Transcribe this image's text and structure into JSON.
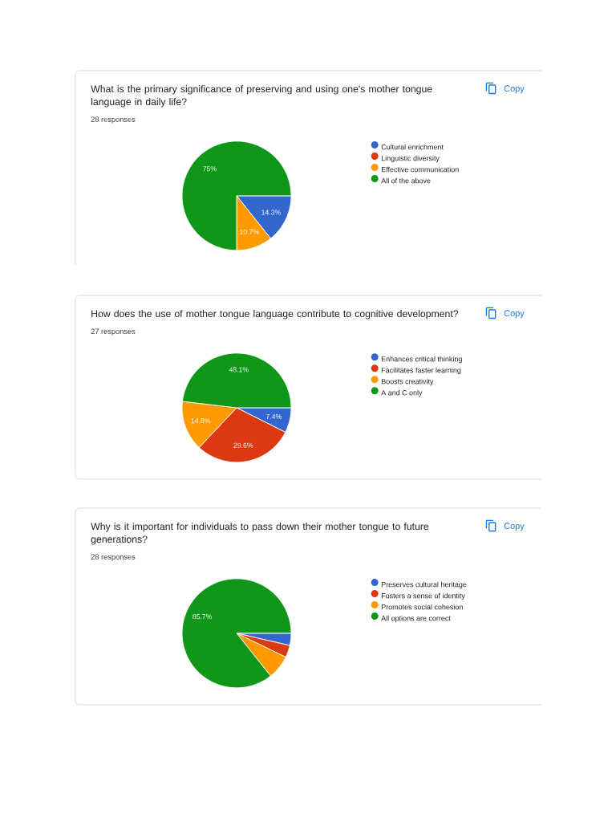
{
  "chart_data": [
    {
      "type": "pie",
      "title": "What is the primary significance of preserving and using one's mother tongue language in daily life?",
      "subtitle": "28 responses",
      "categories": [
        "Cultural enrichment",
        "Linguistic diversity",
        "Effective communication",
        "All of the above"
      ],
      "values": [
        14.3,
        0,
        10.7,
        75
      ],
      "colors": [
        "#3366cc",
        "#dc3912",
        "#ff9900",
        "#109618"
      ],
      "value_labels": [
        "14.3%",
        null,
        "10.7%",
        "75%"
      ],
      "legend": "right",
      "annotations": [
        "Copy"
      ]
    },
    {
      "type": "pie",
      "title": "How does the use of mother tongue language contribute to cognitive development?",
      "subtitle": "27 responses",
      "categories": [
        "Enhances critical thinking",
        "Facilitates faster learning",
        "Boosts creativity",
        "A and C only"
      ],
      "values": [
        7.4,
        29.6,
        14.8,
        48.1
      ],
      "colors": [
        "#3366cc",
        "#dc3912",
        "#ff9900",
        "#109618"
      ],
      "value_labels": [
        "7.4%",
        "29.6%",
        "14.8%",
        "48.1%"
      ],
      "legend": "right",
      "annotations": [
        "Copy"
      ]
    },
    {
      "type": "pie",
      "title": "Why is it important for individuals to pass down their mother tongue to future generations?",
      "subtitle": "28 responses",
      "categories": [
        "Preserves cultural heritage",
        "Fosters a sense of identity",
        "Promotes social cohesion",
        "All options are correct"
      ],
      "values": [
        3.6,
        3.6,
        7.1,
        85.7
      ],
      "colors": [
        "#3366cc",
        "#dc3912",
        "#ff9900",
        "#109618"
      ],
      "value_labels": [
        null,
        null,
        null,
        "85.7%"
      ],
      "legend": "right",
      "annotations": [
        "Copy"
      ]
    }
  ]
}
